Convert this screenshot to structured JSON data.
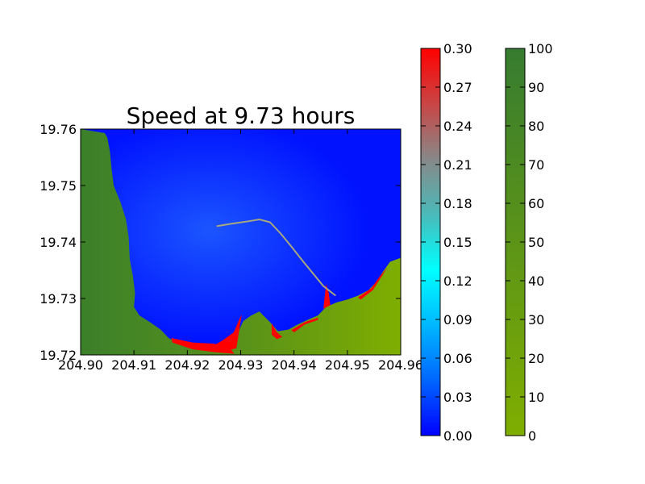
{
  "chart_data": [
    {
      "type": "heatmap",
      "title": "Speed at 9.73 hours",
      "xlabel": "",
      "ylabel": "",
      "xlim": [
        204.9,
        204.96
      ],
      "ylim": [
        19.72,
        19.76
      ],
      "x_ticks": [
        "204.90",
        "204.91",
        "204.92",
        "204.93",
        "204.94",
        "204.95",
        "204.96"
      ],
      "y_ticks": [
        "19.72",
        "19.73",
        "19.74",
        "19.75",
        "19.76"
      ],
      "x_tick_values": [
        204.9,
        204.91,
        204.92,
        204.93,
        204.94,
        204.95,
        204.96
      ],
      "y_tick_values": [
        19.72,
        19.73,
        19.74,
        19.75,
        19.76
      ],
      "colors": {
        "water_low": "#0000ff",
        "water_high": "#ff0000",
        "land_low": "#7fae00",
        "land_high": "#367b30"
      },
      "coastline": [
        [
          204.9045,
          19.7593
        ],
        [
          204.905,
          19.7585
        ],
        [
          204.9055,
          19.756
        ],
        [
          204.9058,
          19.753
        ],
        [
          204.9062,
          19.75
        ],
        [
          204.9075,
          19.747
        ],
        [
          204.9085,
          19.744
        ],
        [
          204.909,
          19.741
        ],
        [
          204.9092,
          19.737
        ],
        [
          204.9098,
          19.734
        ],
        [
          204.9102,
          19.731
        ],
        [
          204.91,
          19.7285
        ],
        [
          204.911,
          19.727
        ],
        [
          204.913,
          19.7258
        ],
        [
          204.915,
          19.7245
        ],
        [
          204.9165,
          19.723
        ],
        [
          204.918,
          19.7222
        ],
        [
          204.921,
          19.7218
        ],
        [
          204.924,
          19.7215
        ],
        [
          204.9265,
          19.7212
        ],
        [
          204.9285,
          19.7212
        ],
        [
          204.9295,
          19.724
        ],
        [
          204.9305,
          19.726
        ],
        [
          204.932,
          19.727
        ],
        [
          204.9335,
          19.7277
        ],
        [
          204.9355,
          19.7258
        ],
        [
          204.937,
          19.7242
        ],
        [
          204.939,
          19.7245
        ],
        [
          204.9405,
          19.7253
        ],
        [
          204.9425,
          19.7262
        ],
        [
          204.9445,
          19.727
        ],
        [
          204.946,
          19.7285
        ],
        [
          204.948,
          19.7293
        ],
        [
          204.95,
          19.7298
        ],
        [
          204.952,
          19.7305
        ],
        [
          204.954,
          19.7315
        ],
        [
          204.9555,
          19.733
        ],
        [
          204.9565,
          19.7345
        ],
        [
          204.958,
          19.7365
        ],
        [
          204.96,
          19.7372
        ]
      ],
      "breakwater": [
        [
          204.9255,
          19.7428
        ],
        [
          204.928,
          19.7432
        ],
        [
          204.931,
          19.7436
        ],
        [
          204.9335,
          19.744
        ],
        [
          204.9355,
          19.7435
        ],
        [
          204.9375,
          19.7415
        ],
        [
          204.9395,
          19.7392
        ],
        [
          204.9415,
          19.7368
        ],
        [
          204.9435,
          19.7345
        ],
        [
          204.9455,
          19.7322
        ],
        [
          204.9478,
          19.7305
        ]
      ],
      "red_zones": [
        [
          [
            204.917,
            19.723
          ],
          [
            204.921,
            19.7222
          ],
          [
            204.925,
            19.722
          ],
          [
            204.928,
            19.7212
          ],
          [
            204.9288,
            19.7202
          ],
          [
            204.925,
            19.7205
          ],
          [
            204.921,
            19.721
          ],
          [
            204.9172,
            19.7222
          ]
        ],
        [
          [
            204.924,
            19.7212
          ],
          [
            204.9265,
            19.7225
          ],
          [
            204.9287,
            19.724
          ],
          [
            204.9297,
            19.7262
          ],
          [
            204.9302,
            19.7272
          ],
          [
            204.9292,
            19.7212
          ],
          [
            204.9265,
            19.7205
          ]
        ],
        [
          [
            204.9358,
            19.7256
          ],
          [
            204.9368,
            19.724
          ],
          [
            204.9378,
            19.7232
          ],
          [
            204.9368,
            19.7228
          ],
          [
            204.9358,
            19.7236
          ]
        ],
        [
          [
            204.9395,
            19.7244
          ],
          [
            204.942,
            19.7258
          ],
          [
            204.9445,
            19.7266
          ],
          [
            204.9445,
            19.7262
          ],
          [
            204.942,
            19.7254
          ],
          [
            204.94,
            19.724
          ]
        ],
        [
          [
            204.9455,
            19.7282
          ],
          [
            204.946,
            19.7325
          ],
          [
            204.9465,
            19.731
          ],
          [
            204.9468,
            19.7288
          ]
        ],
        [
          [
            204.952,
            19.7302
          ],
          [
            204.9545,
            19.7318
          ],
          [
            204.956,
            19.7338
          ],
          [
            204.9575,
            19.7355
          ],
          [
            204.9565,
            19.734
          ],
          [
            204.9548,
            19.7315
          ],
          [
            204.9525,
            19.7298
          ]
        ]
      ]
    },
    {
      "type": "colorbar",
      "min": 0.0,
      "max": 0.3,
      "tick_values": [
        0.0,
        0.03,
        0.06,
        0.09,
        0.12,
        0.15,
        0.18,
        0.21,
        0.24,
        0.27,
        0.3
      ],
      "tick_labels": [
        "0.00",
        "0.03",
        "0.06",
        "0.09",
        "0.12",
        "0.15",
        "0.18",
        "0.21",
        "0.24",
        "0.27",
        "0.30"
      ],
      "colors": [
        "#0000ff",
        "#0066ff",
        "#00b8ff",
        "#00ffff",
        "#4bb9b9",
        "#888888",
        "#c94545",
        "#ff0000"
      ]
    },
    {
      "type": "colorbar",
      "min": 0,
      "max": 100,
      "tick_values": [
        0,
        10,
        20,
        30,
        40,
        50,
        60,
        70,
        80,
        90,
        100
      ],
      "tick_labels": [
        "0",
        "10",
        "20",
        "30",
        "40",
        "50",
        "60",
        "70",
        "80",
        "90",
        "100"
      ],
      "colors": [
        "#7fae00",
        "#5c9418",
        "#367b30"
      ]
    }
  ]
}
